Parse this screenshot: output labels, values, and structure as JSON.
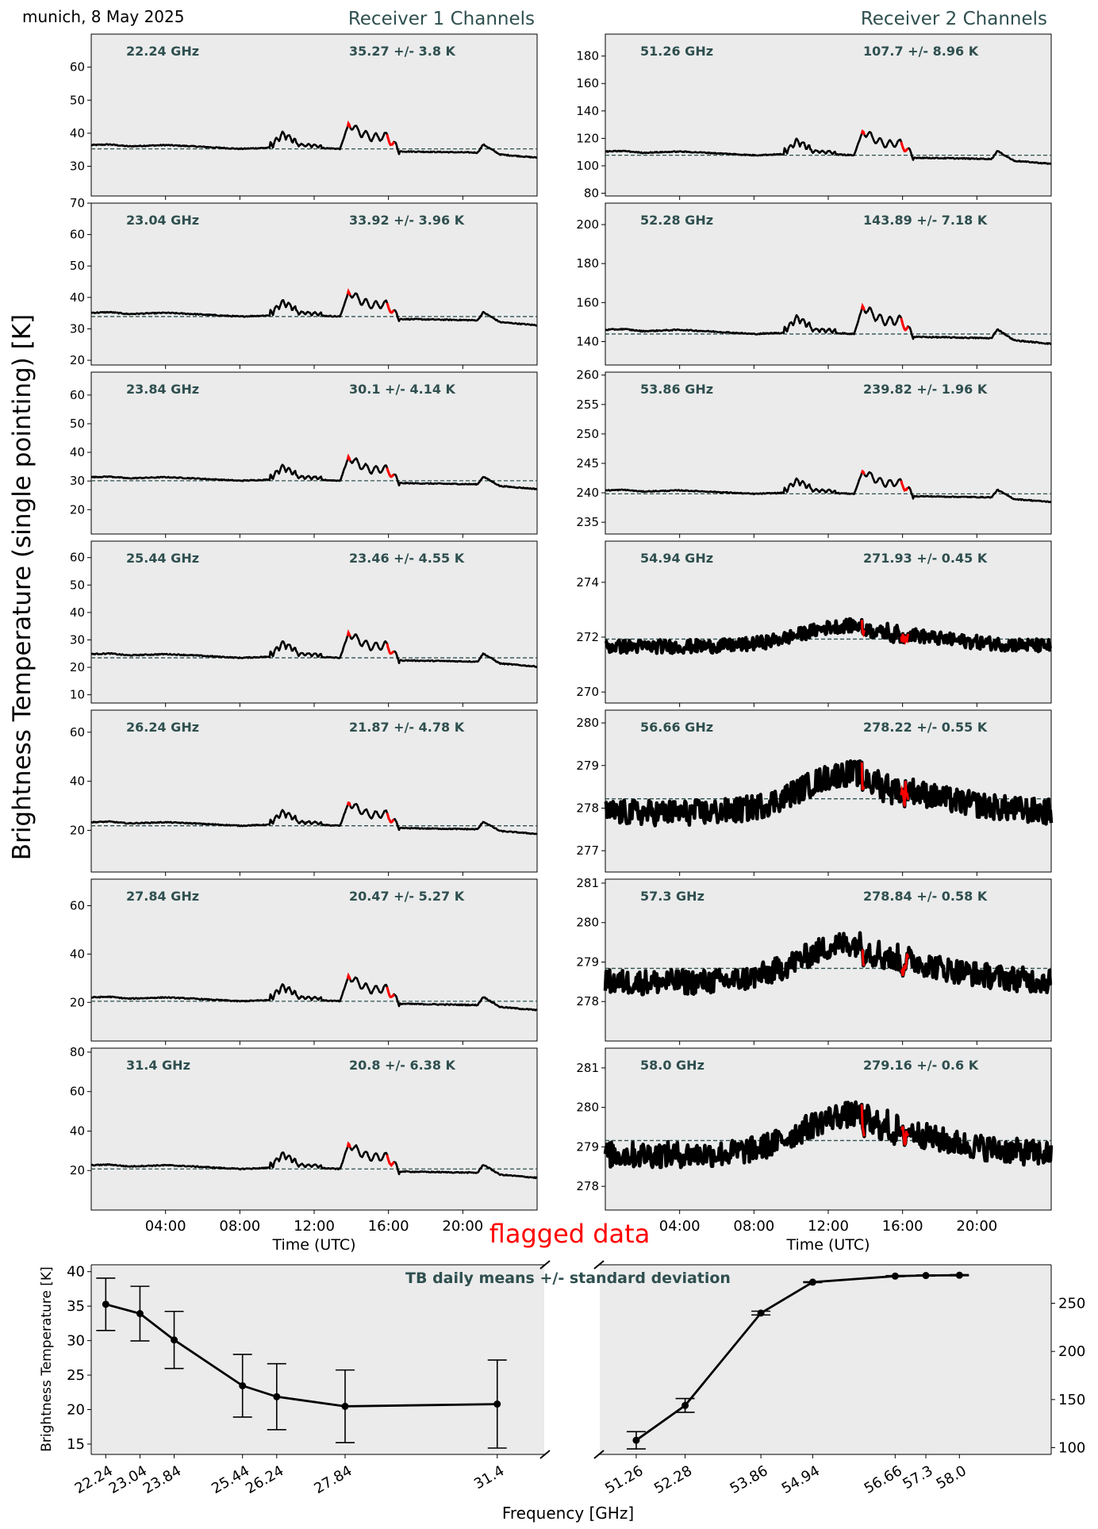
{
  "header": {
    "location_date": "munich, 8 May 2025",
    "receiver1_title": "Receiver 1 Channels",
    "receiver2_title": "Receiver 2 Channels",
    "ylabel": "Brightness Temperature (single pointing) [K]",
    "flagged_label": "flagged data"
  },
  "colors": {
    "panel_bg": "#ebebeb",
    "trace": "#000000",
    "flagged": "#ff0000",
    "annotation": "#2f4f4f",
    "mean_line": "#2f4f4f",
    "title": "#2f4f4f"
  },
  "chart_data": [
    {
      "type": "line",
      "group": "Receiver 1 Channels",
      "xlabel": "Time (UTC)",
      "x_tick_labels": [
        "04:00",
        "08:00",
        "12:00",
        "16:00",
        "20:00"
      ],
      "x_ticks_hours": [
        4,
        8,
        12,
        16,
        20
      ],
      "x_range_hours": [
        0,
        24
      ],
      "flagged_intervals_hours": [
        [
          13.8,
          13.95
        ],
        [
          15.9,
          16.3
        ]
      ],
      "shape_samples": [
        {
          "t": 0,
          "v": 0.3
        },
        {
          "t": 1,
          "v": 0.35
        },
        {
          "t": 2,
          "v": 0.2
        },
        {
          "t": 4,
          "v": 0.3
        },
        {
          "t": 5.5,
          "v": 0.2
        },
        {
          "t": 8,
          "v": 0.0
        },
        {
          "t": 9.8,
          "v": 0.1
        },
        {
          "t": 10.3,
          "v": 0.85
        },
        {
          "t": 11.2,
          "v": 0.15
        },
        {
          "t": 13.4,
          "v": 0.0
        },
        {
          "t": 13.85,
          "v": 2.0
        },
        {
          "t": 14.6,
          "v": 1.2
        },
        {
          "t": 15.1,
          "v": 0.9
        },
        {
          "t": 15.9,
          "v": 1.0
        },
        {
          "t": 16.6,
          "v": -0.2
        },
        {
          "t": 20.8,
          "v": -0.3
        },
        {
          "t": 21.1,
          "v": 0.35
        },
        {
          "t": 22,
          "v": -0.45
        },
        {
          "t": 24,
          "v": -0.7
        }
      ],
      "channels": [
        {
          "freq_label": "22.24 GHz",
          "stat_label": "35.27 +/- 3.8 K",
          "mean": 35.27,
          "std": 3.8,
          "ylim": [
            21,
            70
          ],
          "yticks": [
            30,
            40,
            50,
            60
          ]
        },
        {
          "freq_label": "23.04 GHz",
          "stat_label": "33.92 +/- 3.96 K",
          "mean": 33.92,
          "std": 3.96,
          "ylim": [
            18.5,
            70
          ],
          "yticks": [
            20,
            30,
            40,
            50,
            60,
            70
          ]
        },
        {
          "freq_label": "23.84 GHz",
          "stat_label": "30.1 +/- 4.14 K",
          "mean": 30.1,
          "std": 4.14,
          "ylim": [
            11.5,
            68
          ],
          "yticks": [
            20,
            30,
            40,
            50,
            60
          ]
        },
        {
          "freq_label": "25.44 GHz",
          "stat_label": "23.46 +/- 4.55 K",
          "mean": 23.46,
          "std": 4.55,
          "ylim": [
            7,
            66
          ],
          "yticks": [
            10,
            20,
            30,
            40,
            50,
            60
          ]
        },
        {
          "freq_label": "26.24 GHz",
          "stat_label": "21.87 +/- 4.78 K",
          "mean": 21.87,
          "std": 4.78,
          "ylim": [
            3,
            69
          ],
          "yticks": [
            20,
            40,
            60
          ]
        },
        {
          "freq_label": "27.84 GHz",
          "stat_label": "20.47 +/- 5.27 K",
          "mean": 20.47,
          "std": 5.27,
          "ylim": [
            4,
            71
          ],
          "yticks": [
            20,
            40,
            60
          ]
        },
        {
          "freq_label": "31.4 GHz",
          "stat_label": "20.8 +/- 6.38 K",
          "mean": 20.8,
          "std": 6.38,
          "ylim": [
            0,
            82
          ],
          "yticks": [
            20,
            40,
            60,
            80
          ]
        }
      ]
    },
    {
      "type": "line",
      "group": "Receiver 2 Channels",
      "xlabel": "Time (UTC)",
      "x_tick_labels": [
        "04:00",
        "08:00",
        "12:00",
        "16:00",
        "20:00"
      ],
      "x_ticks_hours": [
        4,
        8,
        12,
        16,
        20
      ],
      "x_range_hours": [
        0,
        24
      ],
      "flagged_intervals_hours": [
        [
          13.8,
          13.95
        ],
        [
          15.9,
          16.3
        ]
      ],
      "channels": [
        {
          "freq_label": "51.26 GHz",
          "stat_label": "107.7 +/- 8.96 K",
          "mean": 107.7,
          "std": 8.96,
          "ylim": [
            78,
            196
          ],
          "yticks": [
            80,
            100,
            120,
            140,
            160,
            180
          ],
          "profile": "water"
        },
        {
          "freq_label": "52.28 GHz",
          "stat_label": "143.89 +/- 7.18 K",
          "mean": 143.89,
          "std": 7.18,
          "ylim": [
            128,
            211
          ],
          "yticks": [
            140,
            160,
            180,
            200
          ],
          "profile": "water"
        },
        {
          "freq_label": "53.86 GHz",
          "stat_label": "239.82 +/- 1.96 K",
          "mean": 239.82,
          "std": 1.96,
          "ylim": [
            233,
            260.5
          ],
          "yticks": [
            235,
            240,
            245,
            250,
            255,
            260
          ],
          "profile": "water"
        },
        {
          "freq_label": "54.94 GHz",
          "stat_label": "271.93 +/- 0.45 K",
          "mean": 271.93,
          "std": 0.45,
          "ylim": [
            269.6,
            275.5
          ],
          "yticks": [
            270,
            272,
            274
          ],
          "profile": "oxygen"
        },
        {
          "freq_label": "56.66 GHz",
          "stat_label": "278.22 +/- 0.55 K",
          "mean": 278.22,
          "std": 0.55,
          "ylim": [
            276.5,
            280.3
          ],
          "yticks": [
            277,
            278,
            279,
            280
          ],
          "profile": "oxygen"
        },
        {
          "freq_label": "57.3 GHz",
          "stat_label": "278.84 +/- 0.58 K",
          "mean": 278.84,
          "std": 0.58,
          "ylim": [
            277,
            281.1
          ],
          "yticks": [
            278,
            279,
            280,
            281
          ],
          "profile": "oxygen"
        },
        {
          "freq_label": "58.0 GHz",
          "stat_label": "279.16 +/- 0.6 K",
          "mean": 279.16,
          "std": 0.6,
          "ylim": [
            277.4,
            281.5
          ],
          "yticks": [
            278,
            279,
            280,
            281
          ],
          "profile": "oxygen"
        }
      ]
    },
    {
      "type": "line",
      "title": "TB daily means +/- standard deviation",
      "xlabel": "Frequency [GHz]",
      "ylabel": "Brightness Temperature [K]",
      "left_ylim": [
        13.5,
        41
      ],
      "left_yticks": [
        15,
        20,
        25,
        30,
        35,
        40
      ],
      "right_ylim": [
        93,
        290
      ],
      "right_yticks": [
        100,
        150,
        200,
        250
      ],
      "left_xlim": [
        21.9,
        32.5
      ],
      "right_xlim": [
        50.5,
        59.5
      ],
      "series": [
        {
          "axis": "left",
          "x": [
            22.24,
            23.04,
            23.84,
            25.44,
            26.24,
            27.84,
            31.4
          ],
          "x_labels": [
            "22.24",
            "23.04",
            "23.84",
            "25.44",
            "26.24",
            "27.84",
            "31.4"
          ],
          "y": [
            35.27,
            33.92,
            30.1,
            23.46,
            21.87,
            20.47,
            20.8
          ],
          "err": [
            3.8,
            3.96,
            4.14,
            4.55,
            4.78,
            5.27,
            6.38
          ]
        },
        {
          "axis": "right",
          "x": [
            51.26,
            52.28,
            53.86,
            54.94,
            56.66,
            57.3,
            58.0
          ],
          "x_labels": [
            "51.26",
            "52.28",
            "53.86",
            "54.94",
            "56.66",
            "57.3",
            "58.0"
          ],
          "y": [
            107.7,
            143.89,
            239.82,
            271.93,
            278.22,
            278.84,
            279.16
          ],
          "err": [
            8.96,
            7.18,
            1.96,
            0.45,
            0.55,
            0.58,
            0.6
          ]
        }
      ]
    }
  ]
}
